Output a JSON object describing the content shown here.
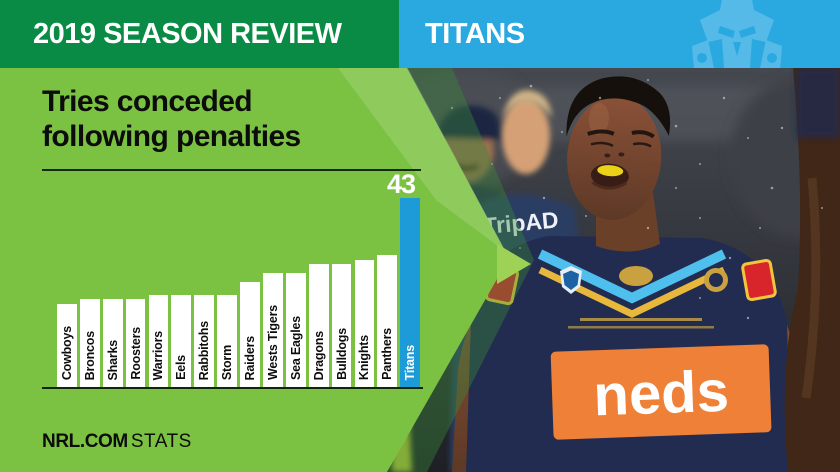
{
  "header": {
    "left": {
      "title": "2019 SEASON REVIEW",
      "bg_color": "#0a8b45"
    },
    "right": {
      "team": "TITANS",
      "bg_color": "#2aa9e1",
      "watermark_icon": "titans-knight-helmet-icon",
      "watermark_color": "#55bae7"
    }
  },
  "panel": {
    "bg_color": "#7cc242"
  },
  "chart_data": {
    "type": "bar",
    "title": "Tries conceded following penalties",
    "categories": [
      "Cowboys",
      "Broncos",
      "Sharks",
      "Roosters",
      "Warriors",
      "Eels",
      "Rabbitohs",
      "Storm",
      "Raiders",
      "Wests Tigers",
      "Sea Eagles",
      "Dragons",
      "Bulldogs",
      "Knights",
      "Panthers",
      "Titans"
    ],
    "values": [
      19,
      20,
      20,
      20,
      21,
      21,
      21,
      21,
      24,
      26,
      26,
      28,
      28,
      29,
      30,
      43
    ],
    "values_note": "Only the Titans bar is labeled (43); other values estimated from bar heights",
    "ylim": [
      0,
      45
    ],
    "grid": false,
    "bar_color": "#ffffff",
    "highlight_category": "Titans",
    "highlight_color": "#1d9bd8",
    "highlight_value_label": "43",
    "label_color": "#0d0d0d",
    "highlight_label_color": "#ffffff",
    "category_label_rotation": "vertical, reading bottom to top"
  },
  "footer": {
    "brand_bold": "NRL.COM",
    "brand_regular": "STATS"
  },
  "photo": {
    "alt": "Gold Coast Titans player in rain-soaked navy jersey with yellow mouthguard looking skyward; staff and teammates blurred behind",
    "shirt_text": "TripAD",
    "jersey_sponsor_text": "neds"
  }
}
